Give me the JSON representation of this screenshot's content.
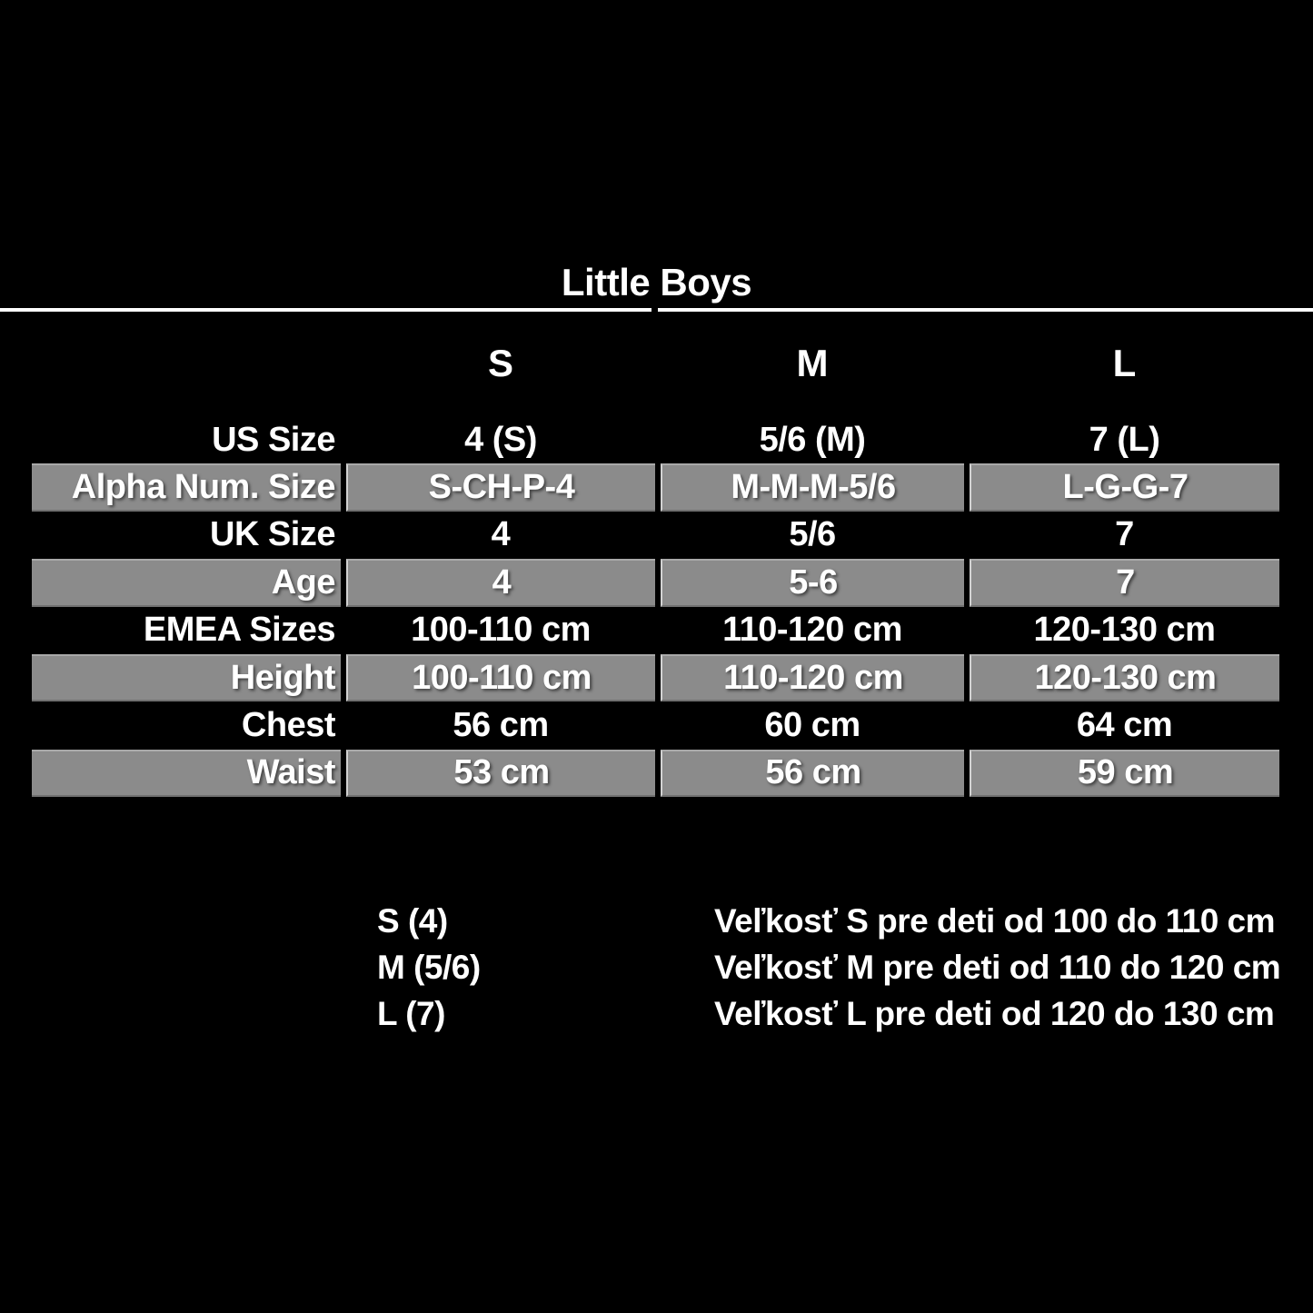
{
  "title": "Little Boys",
  "size_columns": [
    "S",
    "M",
    "L"
  ],
  "table": {
    "rows": [
      {
        "label": "US Size",
        "values": [
          "4 (S)",
          "5/6 (M)",
          "7 (L)"
        ]
      },
      {
        "label": "Alpha Num. Size",
        "values": [
          "S-CH-P-4",
          "M-M-M-5/6",
          "L-G-G-7"
        ]
      },
      {
        "label": "UK Size",
        "values": [
          "4",
          "5/6",
          "7"
        ]
      },
      {
        "label": "Age",
        "values": [
          "4",
          "5-6",
          "7"
        ]
      },
      {
        "label": "EMEA Sizes",
        "values": [
          "100-110 cm",
          "110-120 cm",
          "120-130 cm"
        ]
      },
      {
        "label": "Height",
        "values": [
          "100-110 cm",
          "110-120 cm",
          "120-130 cm"
        ]
      },
      {
        "label": "Chest",
        "values": [
          "56 cm",
          "60 cm",
          "64 cm"
        ]
      },
      {
        "label": "Waist",
        "values": [
          "53 cm",
          "56 cm",
          "59 cm"
        ]
      }
    ]
  },
  "legend": {
    "items": [
      {
        "term": "S (4)",
        "description": "Veľkosť S pre deti od 100 do 110 cm"
      },
      {
        "term": "M (5/6)",
        "description": "Veľkosť M pre deti od 110 do 120 cm"
      },
      {
        "term": "L (7)",
        "description": "Veľkosť L pre deti od 120 do 130 cm"
      }
    ]
  },
  "colors": {
    "background": "#000000",
    "row_shade": "#8b8b8b",
    "text": "#ffffff",
    "divider": "#ffffff"
  },
  "chart_data": {
    "type": "table",
    "title": "Little Boys",
    "columns": [
      "",
      "S",
      "M",
      "L"
    ],
    "rows": [
      [
        "US Size",
        "4 (S)",
        "5/6 (M)",
        "7 (L)"
      ],
      [
        "Alpha Num. Size",
        "S-CH-P-4",
        "M-M-M-5/6",
        "L-G-G-7"
      ],
      [
        "UK Size",
        "4",
        "5/6",
        "7"
      ],
      [
        "Age",
        "4",
        "5-6",
        "7"
      ],
      [
        "EMEA Sizes",
        "100-110 cm",
        "110-120 cm",
        "120-130 cm"
      ],
      [
        "Height",
        "100-110 cm",
        "110-120 cm",
        "120-130 cm"
      ],
      [
        "Chest",
        "56 cm",
        "60 cm",
        "64 cm"
      ],
      [
        "Waist",
        "53 cm",
        "56 cm",
        "59 cm"
      ]
    ],
    "notes": [
      "S (4): Veľkosť S pre deti od 100 do 110 cm",
      "M (5/6): Veľkosť M pre deti od 110 do 120 cm",
      "L (7): Veľkosť L pre deti od 120 do 130 cm"
    ],
    "layout": "shaded rows alternate (Alpha Num. Size, Age, Height, Waist shaded gray)"
  }
}
